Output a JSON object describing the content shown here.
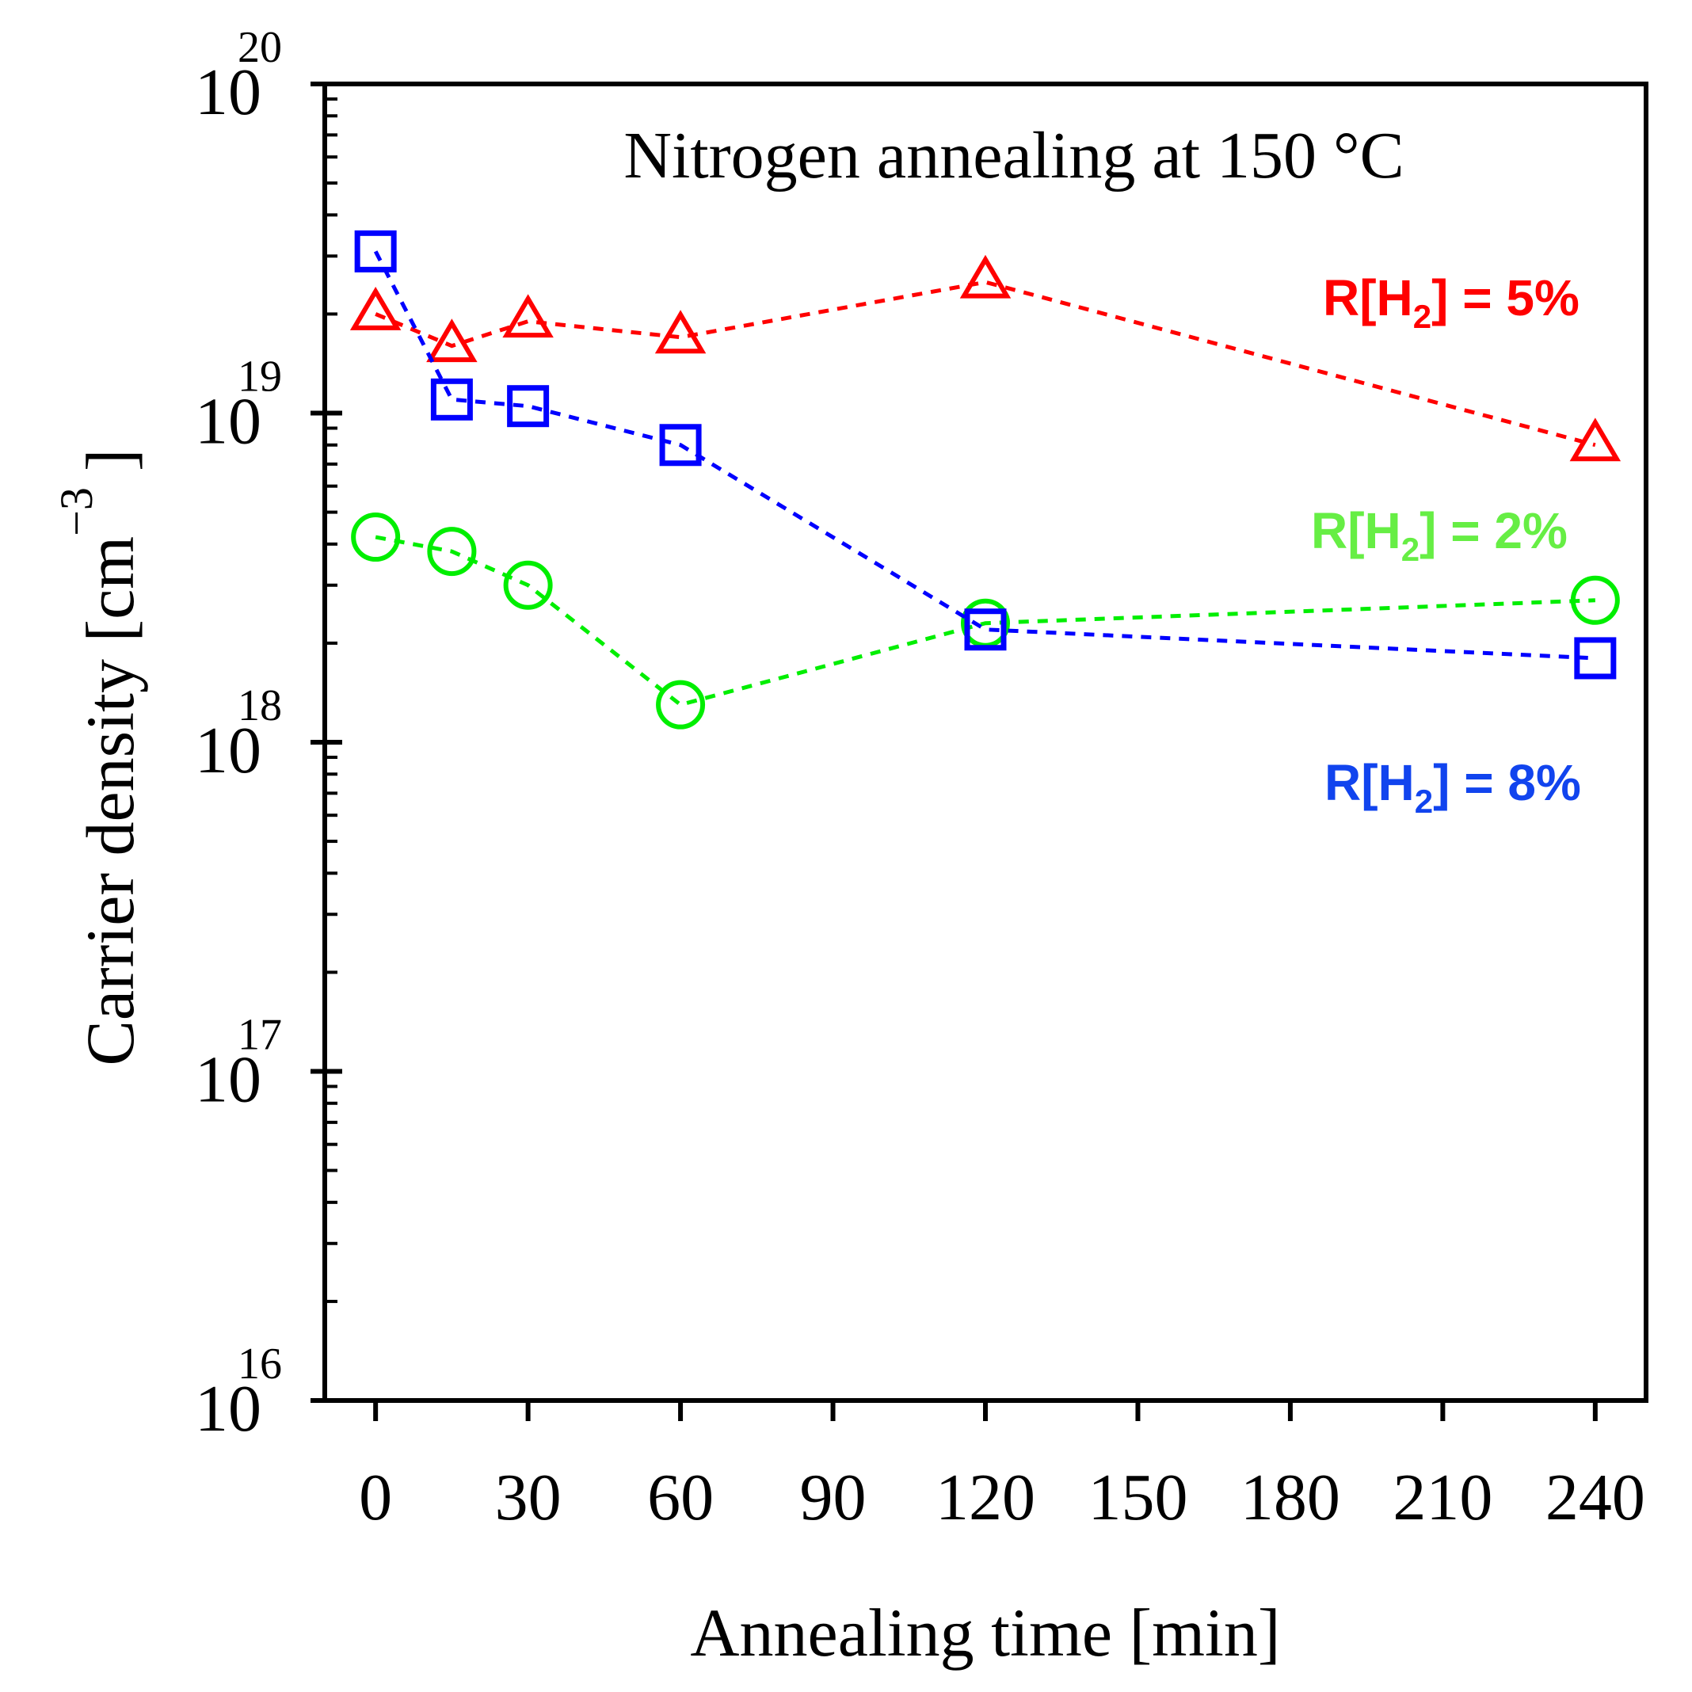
{
  "chart_data": {
    "type": "line",
    "title": "Nitrogen annealing at 150 °C",
    "xlabel": "Annealing time [min]",
    "ylabel": {
      "text": "Carrier density [cm",
      "superscript": "−3",
      "close": "]"
    },
    "x_ticks": [
      "0",
      "30",
      "60",
      "90",
      "120",
      "150",
      "180",
      "210",
      "240"
    ],
    "x_tick_values": [
      0,
      30,
      60,
      90,
      120,
      150,
      180,
      210,
      240
    ],
    "xlim": [
      -10,
      250
    ],
    "y_scale": "log",
    "ylim": [
      1e+16,
      1e+20
    ],
    "y_ticks": [
      {
        "value": 1e+16,
        "base": "10",
        "exponent": "16"
      },
      {
        "value": 1e+17,
        "base": "10",
        "exponent": "17"
      },
      {
        "value": 1e+18,
        "base": "10",
        "exponent": "18"
      },
      {
        "value": 1e+19,
        "base": "10",
        "exponent": "19"
      },
      {
        "value": 1e+20,
        "base": "10",
        "exponent": "20"
      }
    ],
    "grid": false,
    "legend": "inline labels at right",
    "series": [
      {
        "name": "R[H2] = 5%",
        "label": {
          "pre": "R[H",
          "sub": "2",
          "post": "] = 5%"
        },
        "color": "#ff0000",
        "marker": "triangle",
        "x": [
          0,
          15,
          30,
          60,
          120,
          240
        ],
        "y": [
          2e+19,
          1.6e+19,
          1.9e+19,
          1.7e+19,
          2.5e+19,
          8e+18
        ]
      },
      {
        "name": "R[H2] = 2%",
        "label": {
          "pre": "R[H",
          "sub": "2",
          "post": "] = 2%"
        },
        "color": "#00ee00",
        "marker": "circle",
        "x": [
          0,
          15,
          30,
          60,
          120,
          240
        ],
        "y": [
          4.2e+18,
          3.8e+18,
          3e+18,
          1.3e+18,
          2.3e+18,
          2.7e+18
        ]
      },
      {
        "name": "R[H2] = 8%",
        "label": {
          "pre": "R[H",
          "sub": "2",
          "post": "] = 8%"
        },
        "color": "#0000ff",
        "marker": "square",
        "x": [
          0,
          15,
          30,
          60,
          120,
          240
        ],
        "y": [
          3.1e+19,
          1.1e+19,
          1.05e+19,
          8e+18,
          2.2e+18,
          1.8e+18
        ]
      }
    ]
  }
}
